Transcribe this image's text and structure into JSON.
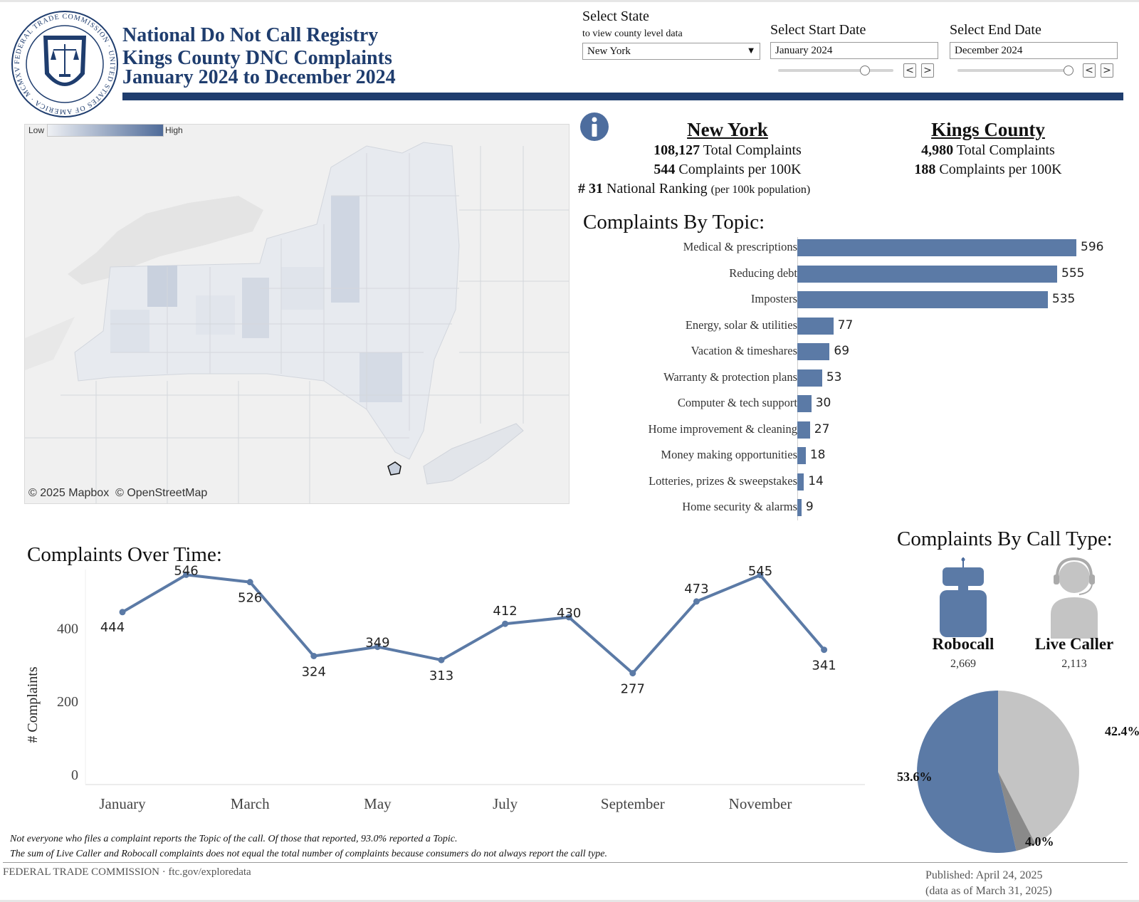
{
  "header": {
    "seal_text": "FEDERAL TRADE COMMISSION · UNITED STATES OF AMERICA · MCMXV",
    "title_line1": "National Do Not Call Registry",
    "title_line2": "Kings County DNC Complaints",
    "title_line3": "January 2024 to December 2024"
  },
  "controls": {
    "state": {
      "label": "Select State",
      "sublabel": "to view county level data",
      "value": "New York"
    },
    "start_date": {
      "label": "Select Start Date",
      "value": "January 2024",
      "prev": "<",
      "next": ">"
    },
    "end_date": {
      "label": "Select End Date",
      "value": "December 2024",
      "prev": "<",
      "next": ">"
    }
  },
  "map": {
    "legend_low": "Low",
    "legend_high": "High",
    "attribution": "© 2025 Mapbox  © OpenStreetMap",
    "colors": {
      "low": "#e6e9ee",
      "high": "#4f6b99",
      "background": "#ededed"
    }
  },
  "info_icon": "info-icon",
  "stats": {
    "state": {
      "name": "New York",
      "total_value": "108,127",
      "total_label": "Total Complaints",
      "per100k_value": "544",
      "per100k_label": "Complaints per 100K",
      "rank_prefix": "# 31",
      "rank_label": "National Ranking",
      "rank_note": "(per 100k population)"
    },
    "county": {
      "name": "Kings County",
      "total_value": "4,980",
      "total_label": "Total Complaints",
      "per100k_value": "188",
      "per100k_label": "Complaints per 100K"
    }
  },
  "topics": {
    "title": "Complaints By Topic:",
    "bar_color": "#5b7aa6",
    "chart_data": {
      "type": "bar",
      "orientation": "horizontal",
      "categories": [
        "Medical & prescriptions",
        "Reducing debt",
        "Imposters",
        "Energy, solar & utilities",
        "Vacation & timeshares",
        "Warranty & protection plans",
        "Computer & tech support",
        "Home improvement & cleaning",
        "Money making opportunities",
        "Lotteries, prizes & sweepstakes",
        "Home security & alarms"
      ],
      "values": [
        596,
        555,
        535,
        77,
        69,
        53,
        30,
        27,
        18,
        14,
        9
      ],
      "labels": [
        "596",
        "555",
        "535",
        "77",
        "69",
        "53",
        "30",
        "27",
        "18",
        "14",
        "9"
      ]
    }
  },
  "time": {
    "title": "Complaints Over Time:",
    "line_color": "#5b7aa6",
    "chart_data": {
      "type": "line",
      "x": [
        "January",
        "February",
        "March",
        "April",
        "May",
        "June",
        "July",
        "August",
        "September",
        "October",
        "November",
        "December"
      ],
      "values": [
        444,
        546,
        526,
        324,
        349,
        313,
        412,
        430,
        277,
        473,
        545,
        341
      ],
      "labels": [
        "444",
        "546",
        "526",
        "324",
        "349",
        "313",
        "412",
        "430",
        "277",
        "473",
        "545",
        "341"
      ],
      "x_tick_labels": [
        "January",
        "March",
        "May",
        "July",
        "September",
        "November"
      ],
      "y_tick_labels": [
        "0",
        "200",
        "400"
      ],
      "y_ticks": [
        0,
        200,
        400
      ],
      "ylabel": "# Complaints",
      "ylim": [
        0,
        580
      ],
      "grid": false
    }
  },
  "calltype": {
    "title": "Complaints By Call Type:",
    "robocall": {
      "label": "Robocall",
      "value": "2,669",
      "icon": "robot-icon"
    },
    "live": {
      "label": "Live Caller",
      "value": "2,113",
      "icon": "headset-person-icon"
    },
    "chart_data": {
      "type": "pie",
      "slices": [
        {
          "value": 53.6,
          "label": "53.6%",
          "color": "#5b7aa6"
        },
        {
          "value": 42.4,
          "label": "42.4%",
          "color": "#c4c4c4"
        },
        {
          "value": 4.0,
          "label": "4.0%",
          "color": "#8a8a8a"
        }
      ]
    }
  },
  "notes": {
    "line1": "Not everyone who files a complaint reports the Topic of the call.  Of those that reported, 93.0% reported a Topic.",
    "line2": "The sum of Live Caller and Robocall complaints does not equal the total number of complaints because consumers do not always report the call type."
  },
  "footer": {
    "left": "FEDERAL TRADE COMMISSION · ftc.gov/exploredata",
    "published": "Published: April 24, 2025",
    "data_as_of": "(data as of March 31, 2025)"
  }
}
